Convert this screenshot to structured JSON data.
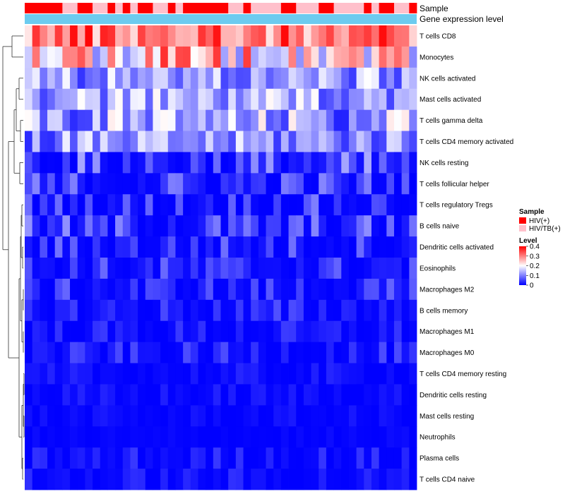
{
  "chart_data": {
    "type": "heatmap",
    "title": "",
    "annotation_labels": {
      "sample": "Sample",
      "expression": "Gene expression level"
    },
    "colors": {
      "hiv": "#FF0000",
      "hivtb": "#FFC0CB",
      "expression_bar": "#6CCBEF",
      "low": "#0000FF",
      "mid": "#FFFFFF",
      "high": "#FF0000",
      "dendro": "#333333"
    },
    "rows": [
      "T cells CD8",
      "Monocytes",
      "NK cells activated",
      "Mast cells activated",
      "T cells gamma delta",
      "T cells CD4 memory activated",
      "NK cells resting",
      "T cells follicular helper",
      "T cells regulatory  Tregs",
      "B cells naive",
      "Dendritic cells activated",
      "Eosinophils",
      "Macrophages M2",
      "B cells memory",
      "Macrophages M1",
      "Macrophages M0",
      "T cells CD4 memory resting",
      "Dendritic cells resting",
      "Mast cells resting",
      "Neutrophils",
      "Plasma cells",
      "T cells CD4 naive"
    ],
    "sample_groups": [
      "HIV(+)",
      "HIV(+)",
      "HIV(+)",
      "HIV(+)",
      "HIV(+)",
      "HIV/TB(+)",
      "HIV/TB(+)",
      "HIV(+)",
      "HIV(+)",
      "HIV/TB(+)",
      "HIV/TB(+)",
      "HIV(+)",
      "HIV/TB(+)",
      "HIV(+)",
      "HIV/TB(+)",
      "HIV(+)",
      "HIV(+)",
      "HIV/TB(+)",
      "HIV/TB(+)",
      "HIV(+)",
      "HIV/TB(+)",
      "HIV(+)",
      "HIV(+)",
      "HIV(+)",
      "HIV(+)",
      "HIV(+)",
      "HIV(+)",
      "HIV/TB(+)",
      "HIV/TB(+)",
      "HIV(+)",
      "HIV/TB(+)",
      "HIV/TB(+)",
      "HIV/TB(+)",
      "HIV/TB(+)",
      "HIV(+)",
      "HIV(+)",
      "HIV/TB(+)",
      "HIV/TB(+)",
      "HIV/TB(+)",
      "HIV(+)",
      "HIV(+)",
      "HIV/TB(+)",
      "HIV/TB(+)",
      "HIV/TB(+)",
      "HIV/TB(+)",
      "HIV(+)",
      "HIV/TB(+)",
      "HIV(+)",
      "HIV(+)",
      "HIV/TB(+)",
      "HIV/TB(+)",
      "HIV(+)"
    ],
    "row_value_ranges": [
      [
        0.22,
        0.4
      ],
      [
        0.1,
        0.38
      ],
      [
        0.04,
        0.2
      ],
      [
        0.05,
        0.21
      ],
      [
        0.02,
        0.22
      ],
      [
        0.03,
        0.19
      ],
      [
        0.0,
        0.14
      ],
      [
        0.0,
        0.12
      ],
      [
        0.0,
        0.1
      ],
      [
        0.0,
        0.12
      ],
      [
        0.0,
        0.1
      ],
      [
        0.0,
        0.09
      ],
      [
        0.0,
        0.08
      ],
      [
        0.0,
        0.07
      ],
      [
        0.0,
        0.05
      ],
      [
        0.0,
        0.06
      ],
      [
        0.0,
        0.03
      ],
      [
        0.0,
        0.03
      ],
      [
        0.0,
        0.02
      ],
      [
        0.0,
        0.01
      ],
      [
        0.0,
        0.05
      ],
      [
        0.0,
        0.04
      ]
    ],
    "legend": {
      "sample_title": "Sample",
      "sample_entries": [
        "HIV(+)",
        "HIV/TB(+)"
      ],
      "level_title": "Level",
      "level_ticks": [
        "0.4",
        "0.3",
        "0.2",
        "0.1",
        "0"
      ],
      "level_min": 0,
      "level_max": 0.4
    }
  }
}
